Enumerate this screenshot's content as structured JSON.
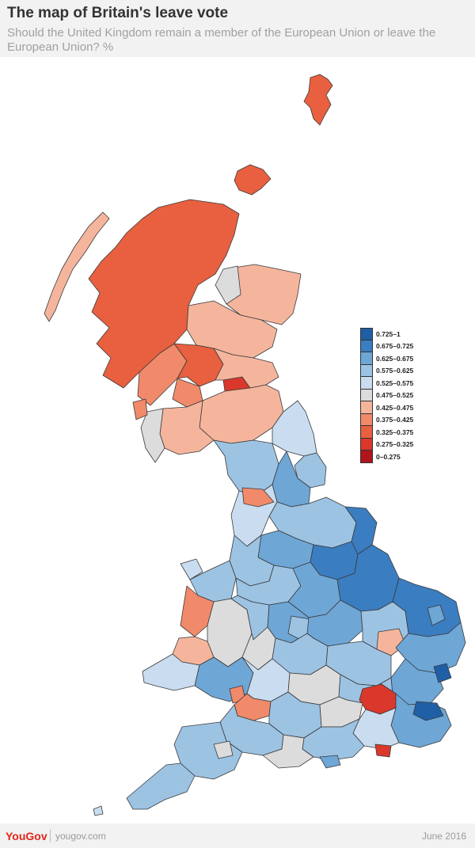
{
  "header": {
    "title": "The map of Britain's leave vote",
    "subtitle": "Should the United Kingdom remain a member of the European Union or leave the European Union? %"
  },
  "legend": {
    "items": [
      {
        "label": "0.725–1",
        "color": "#1f5fa6"
      },
      {
        "label": "0.675–0.725",
        "color": "#3a7dc0"
      },
      {
        "label": "0.625–0.675",
        "color": "#6ea6d6"
      },
      {
        "label": "0.575–0.625",
        "color": "#9dc3e3"
      },
      {
        "label": "0.525–0.575",
        "color": "#c9dcf0"
      },
      {
        "label": "0.475–0.525",
        "color": "#dcdcdc"
      },
      {
        "label": "0.425–0.475",
        "color": "#f5b59c"
      },
      {
        "label": "0.375–0.425",
        "color": "#f08a6a"
      },
      {
        "label": "0.325–0.375",
        "color": "#e8603f"
      },
      {
        "label": "0.275–0.325",
        "color": "#d9382a"
      },
      {
        "label": "0–0.275",
        "color": "#b0151c"
      }
    ]
  },
  "footer": {
    "brand": "YouGov",
    "site": "yougov.com",
    "date": "June 2016"
  },
  "map_style": {
    "border_color": "#3a3a3a"
  }
}
